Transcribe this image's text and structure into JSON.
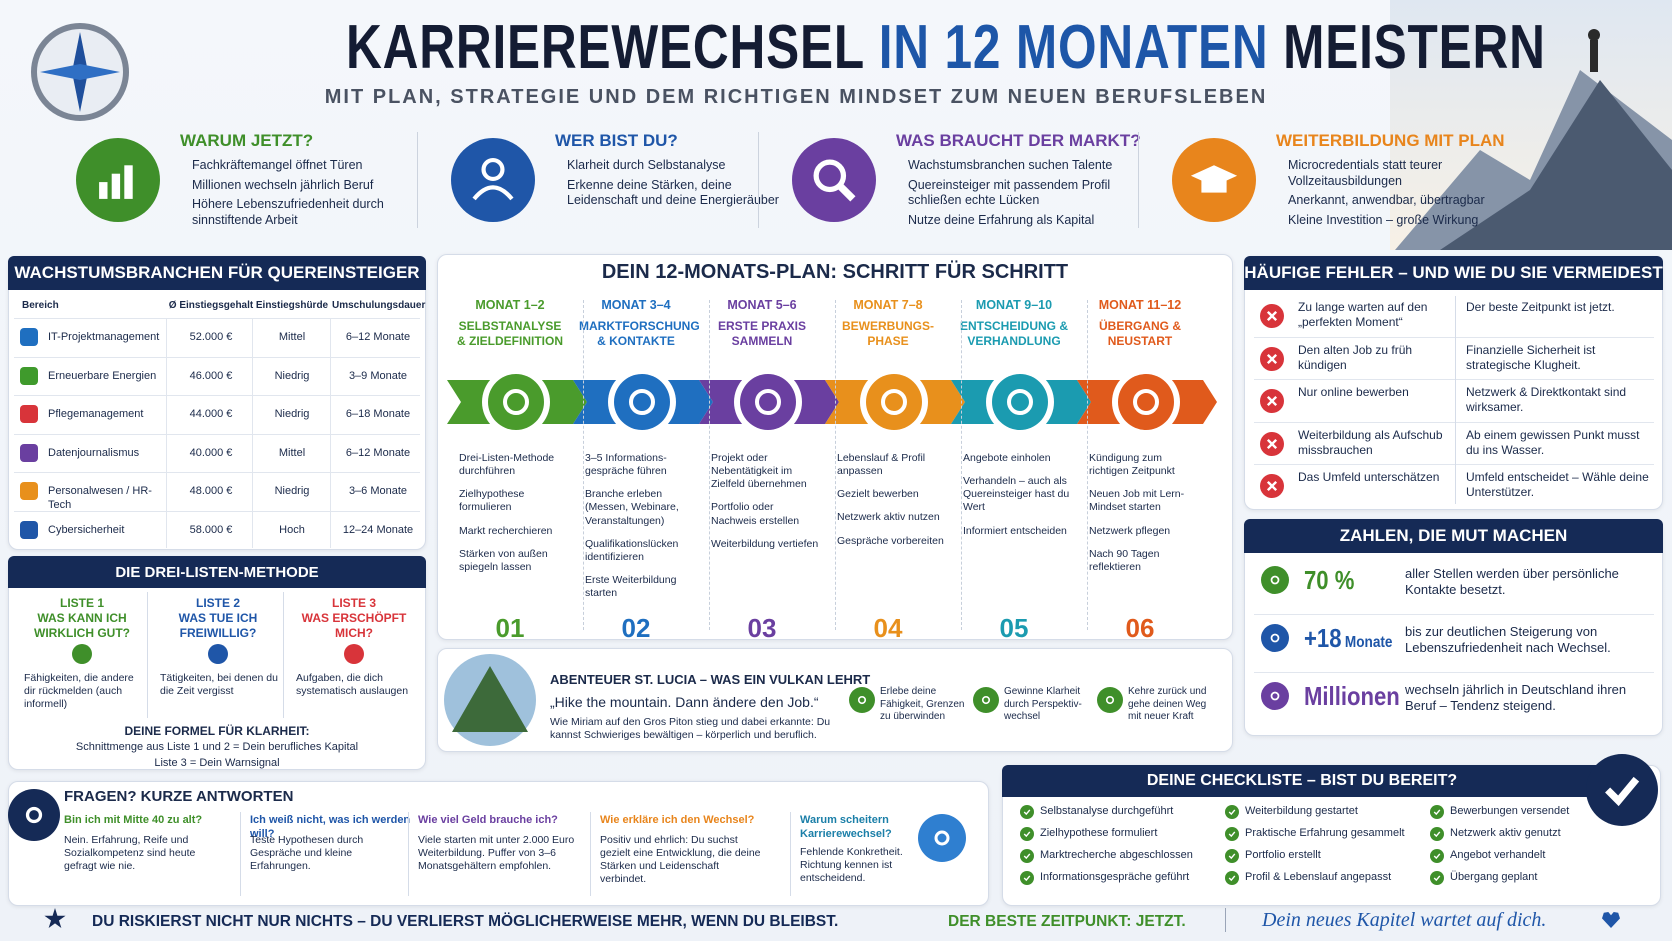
{
  "header": {
    "title_start": "KARRIEREWECHSEL",
    "title_highlight": "IN 12 MONATEN",
    "title_end": "MEISTERN",
    "subtitle": "MIT PLAN, STRATEGIE UND DEM RICHTIGEN MINDSET ZUM NEUEN BERUFSLEBEN"
  },
  "intro": [
    {
      "title": "WARUM JETZT?",
      "bullets": [
        "Fachkräftemangel öffnet Türen",
        "Millionen wechseln jährlich Beruf",
        "Höhere Lebenszufriedenheit durch sinnstiftende Arbeit"
      ]
    },
    {
      "title": "WER BIST DU?",
      "bullets": [
        "Klarheit durch Selbstanalyse",
        "Erkenne deine Stärken, deine Leidenschaft und deine Energieräuber"
      ]
    },
    {
      "title": "WAS BRAUCHT DER MARKT?",
      "bullets": [
        "Wachstumsbranchen suchen Talente",
        "Quereinsteiger mit passendem Profil schließen echte Lücken",
        "Nutze deine Erfahrung als Kapital"
      ]
    },
    {
      "title": "WEITERBILDUNG MIT PLAN",
      "bullets": [
        "Microcredentials statt teurer Vollzeitausbildungen",
        "Anerkannt, anwendbar, übertragbar",
        "Kleine Investition – große Wirkung"
      ]
    }
  ],
  "growth_table": {
    "title": "WACHSTUMSBRANCHEN FÜR QUEREINSTEIGER",
    "header": [
      "Bereich",
      "Ø Einstiegsgehalt",
      "Einstiegshürde",
      "Umschulungsdauer"
    ],
    "rows": [
      [
        "IT-Projektmanagement",
        "52.000 €",
        "Mittel",
        "6–12 Monate"
      ],
      [
        "Erneuerbare Energien",
        "46.000 €",
        "Niedrig",
        "3–9 Monate"
      ],
      [
        "Pflegemanagement",
        "44.000 €",
        "Niedrig",
        "6–18 Monate"
      ],
      [
        "Datenjournalismus",
        "40.000 €",
        "Mittel",
        "6–12 Monate"
      ],
      [
        "Personalwesen / HR-Tech",
        "48.000 €",
        "Niedrig",
        "3–6 Monate"
      ],
      [
        "Cybersicherheit",
        "58.000 €",
        "Hoch",
        "12–24 Monate"
      ]
    ]
  },
  "three_lists": {
    "title": "DIE DREI-LISTEN-METHODE",
    "lists": [
      {
        "label": "LISTE 1",
        "question": "WAS KANN ICH WIRKLICH GUT?",
        "text": "Fähigkeiten, die andere dir rückmelden (auch informell)"
      },
      {
        "label": "LISTE 2",
        "question": "WAS TUE ICH FREIWILLIG?",
        "text": "Tätigkeiten, bei denen du die Zeit vergisst"
      },
      {
        "label": "LISTE 3",
        "question": "WAS ERSCHÖPFT MICH?",
        "text": "Aufgaben, die dich systematisch auslaugen"
      }
    ],
    "formula_title": "DEINE FORMEL FÜR KLARHEIT:",
    "formula": [
      "Schnittmenge aus Liste 1 und 2 = Dein berufliches Kapital",
      "Liste 3 = Dein Warnsignal"
    ]
  },
  "plan": {
    "title": "DEIN 12-MONATS-PLAN: SCHRITT FÜR SCHRITT",
    "steps": [
      {
        "month": "MONAT 1–2",
        "name": "SELBSTANALYSE & ZIELDEFINITION",
        "bullets": [
          "Drei-Listen-Methode durchführen",
          "Zielhypothese formulieren",
          "Markt recherchieren",
          "Stärken von außen spiegeln lassen"
        ],
        "number": "01"
      },
      {
        "month": "MONAT 3–4",
        "name": "MARKTFORSCHUNG & KONTAKTE",
        "bullets": [
          "3–5 Informations­gespräche führen",
          "Branche erleben (Messen, Webinare, Veranstaltungen)",
          "Qualifikationslücken identifizieren",
          "Erste Weiterbildung starten"
        ],
        "number": "02"
      },
      {
        "month": "MONAT 5–6",
        "name": "ERSTE PRAXIS SAMMELN",
        "bullets": [
          "Projekt oder Nebentätigkeit im Zielfeld übernehmen",
          "Portfolio oder Nachweis erstellen",
          "Weiterbildung vertiefen"
        ],
        "number": "03"
      },
      {
        "month": "MONAT 7–8",
        "name": "BEWERBUNGS-PHASE",
        "bullets": [
          "Lebenslauf & Profil anpassen",
          "Gezielt bewerben",
          "Netzwerk aktiv nutzen",
          "Gespräche vorbereiten"
        ],
        "number": "04"
      },
      {
        "month": "MONAT 9–10",
        "name": "ENTSCHEIDUNG & VERHANDLUNG",
        "bullets": [
          "Angebote einholen",
          "Verhandeln – auch als Quereinsteiger hast du Wert",
          "Informiert entscheiden"
        ],
        "number": "05"
      },
      {
        "month": "MONAT 11–12",
        "name": "ÜBERGANG & NEUSTART",
        "bullets": [
          "Kündigung zum richtigen Zeitpunkt",
          "Neuen Job mit Lern-Mindset starten",
          "Netzwerk pflegen",
          "Nach 90 Tagen reflektieren"
        ],
        "number": "06"
      }
    ]
  },
  "story": {
    "title": "ABENTEUER ST. LUCIA – WAS EIN VULKAN LEHRT",
    "quote": "„Hike the mountain. Dann ändere den Job.“",
    "text": "Wie Miriam auf den Gros Piton stieg und dabei erkannte: Du kannst Schwieriges bewältigen – körperlich und beruflich.",
    "lessons": [
      "Erlebe deine Fähigkeit, Grenzen zu überwinden",
      "Gewinne Klarheit durch Perspektiv­wechsel",
      "Kehre zurück und gehe deinen Weg mit neuer Kraft"
    ]
  },
  "mistakes": {
    "title": "HÄUFIGE FEHLER – UND WIE DU SIE VERMEIDEST",
    "rows": [
      {
        "mistake": "Zu lange warten auf den „perfekten Moment“",
        "fix": "Der beste Zeitpunkt ist jetzt."
      },
      {
        "mistake": "Den alten Job zu früh kündigen",
        "fix": "Finanzielle Sicherheit ist strategische Klugheit."
      },
      {
        "mistake": "Nur online bewerben",
        "fix": "Netzwerk & Direktkontakt sind wirksamer."
      },
      {
        "mistake": "Weiterbildung als Aufschub missbrauchen",
        "fix": "Ab einem gewissen Punkt musst du ins Wasser."
      },
      {
        "mistake": "Das Umfeld unterschätzen",
        "fix": "Umfeld entscheidet – Wähle deine Unterstützer."
      }
    ]
  },
  "stats": {
    "title": "ZAHLEN, DIE MUT MACHEN",
    "items": [
      {
        "value": "70 %",
        "text": "aller Stellen werden über persönliche Kontakte besetzt."
      },
      {
        "value": "+18",
        "unit": "Monate",
        "text": "bis zur deutlichen Steigerung von Lebenszufriedenheit nach Wechsel."
      },
      {
        "value": "Millionen",
        "text": "wechseln jährlich in Deutschland ihren Beruf – Tendenz steigend."
      }
    ]
  },
  "faq": {
    "title": "FRAGEN? KURZE ANTWORTEN",
    "items": [
      {
        "q": "Bin ich mit Mitte 40 zu alt?",
        "a": "Nein. Erfahrung, Reife und Sozialkompetenz sind heute gefragt wie nie."
      },
      {
        "q": "Ich weiß nicht, was ich werden will?",
        "a": "Teste Hypothesen durch Gespräche und kleine Erfahrungen."
      },
      {
        "q": "Wie viel Geld brauche ich?",
        "a": "Viele starten mit unter 2.000 Euro Weiterbildung. Puffer von 3–6 Monatsgehältern empfohlen."
      },
      {
        "q": "Wie erkläre ich den Wechsel?",
        "a": "Positiv und ehrlich: Du suchst gezielt eine Entwicklung, die deine Stärken und Leidenschaft verbindet."
      },
      {
        "q": "Warum scheitern Karrierewechsel?",
        "a": "Fehlende Konkretheit. Richtung kennen ist entscheidend."
      }
    ]
  },
  "checklist": {
    "title": "DEINE CHECKLISTE – BIST DU BEREIT?",
    "items": [
      "Selbstanalyse durchgeführt",
      "Zielhypothese formuliert",
      "Marktrecherche abgeschlossen",
      "Informationsgespräche geführt",
      "Weiterbildung gestartet",
      "Praktische Erfahrung gesammelt",
      "Portfolio erstellt",
      "Profil & Lebenslauf angepasst",
      "Bewerbungen versendet",
      "Netzwerk aktiv genutzt",
      "Angebot verhandelt",
      "Übergang geplant"
    ]
  },
  "footer": {
    "left": "DU RISKIERST NICHT NUR NICHTS – DU VERLIERST MÖGLICHERWEISE MEHR, WENN DU BLEIBST.",
    "middle": "DER BESTE ZEITPUNKT: JETZT.",
    "right": "Dein neues Kapitel wartet auf dich."
  }
}
